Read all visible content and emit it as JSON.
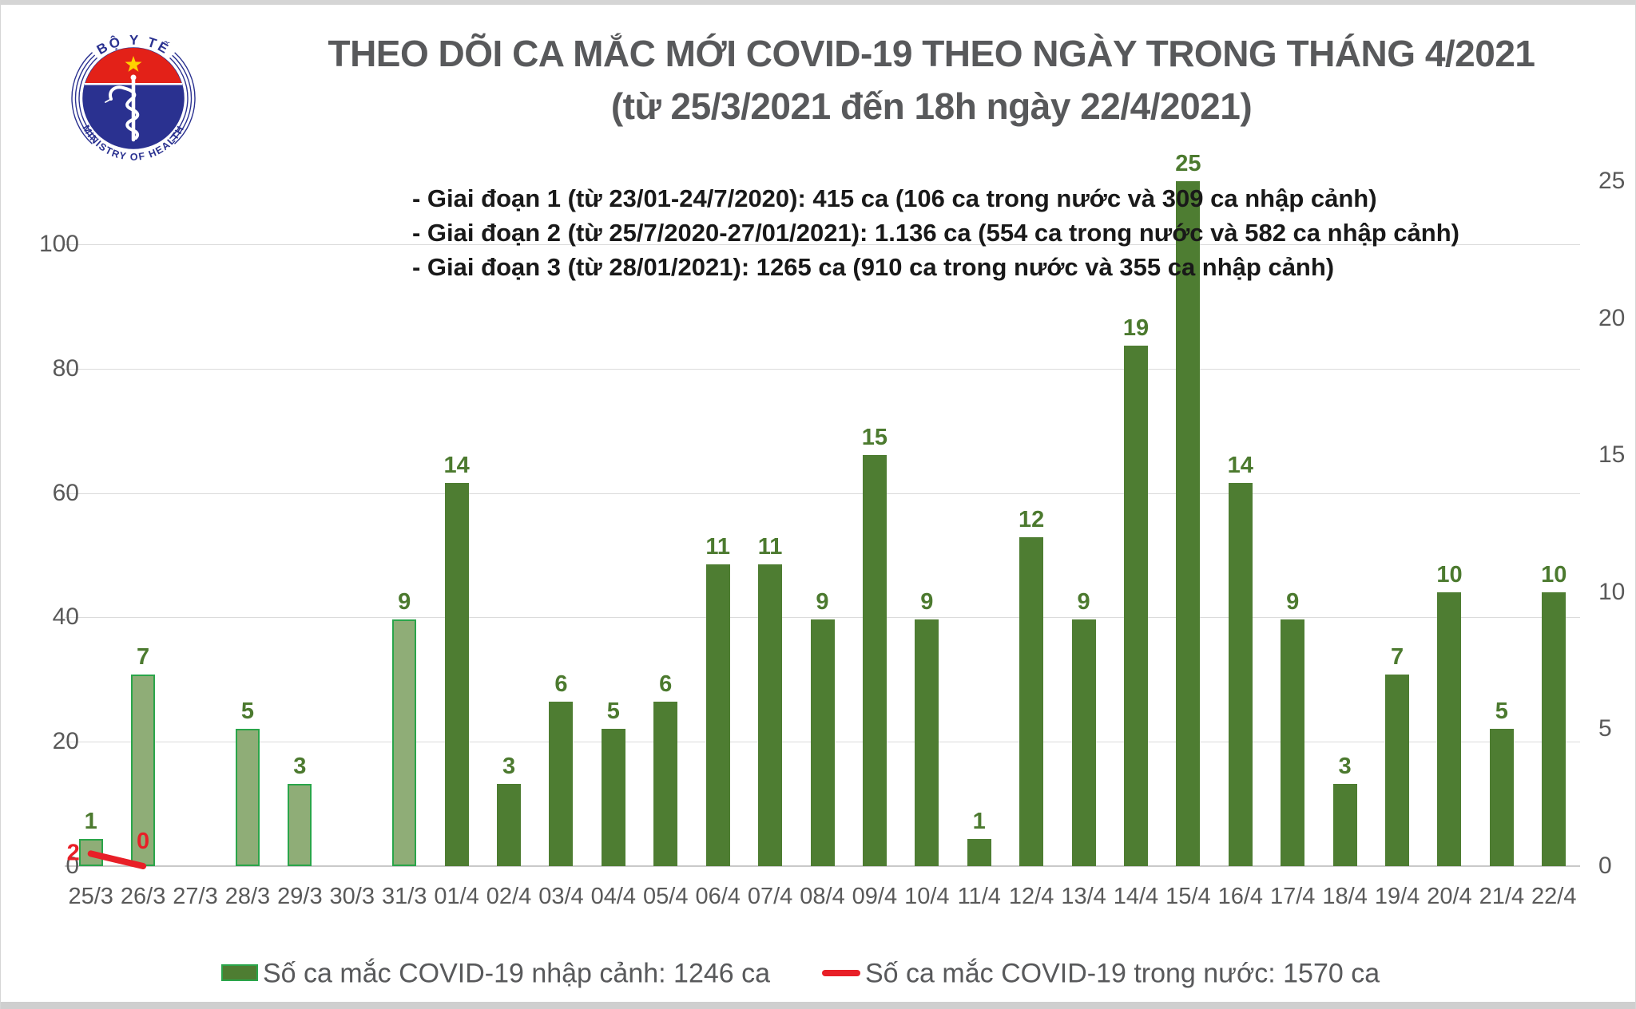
{
  "slide": {
    "title_line1": "THEO DÕI CA MẮC MỚI COVID-19 THEO NGÀY TRONG THÁNG 4/2021",
    "title_line2": "(từ 25/3/2021 đến 18h ngày 22/4/2021)"
  },
  "logo": {
    "top_text": "BỘ Y TẾ",
    "bottom_text": "MINISTRY OF HEALTH"
  },
  "annotations": [
    "- Giai đoạn 1 (từ 23/01-24/7/2020): 415 ca (106 ca trong nước và 309 ca nhập cảnh)",
    "- Giai đoạn 2 (từ 25/7/2020-27/01/2021): 1.136 ca (554 ca trong nước và 582 ca nhập cảnh)",
    "- Giai đoạn 3 (từ 28/01/2021): 1265 ca (910 ca trong nước và 355 ca nhập cảnh)"
  ],
  "legend": {
    "bar_label": "Số ca mắc COVID-19 nhập cảnh: 1246 ca",
    "line_label": "Số ca mắc COVID-19 trong nước: 1570 ca"
  },
  "colors": {
    "bar_april": "#4e7d32",
    "bar_march_fill": "#8fad77",
    "bar_march_border": "#2aa54a",
    "line_red": "#e81f27",
    "value_label_green": "#4c7a2f",
    "axis_gray": "#595959",
    "gridline": "#dbdbdb"
  },
  "chart_data": {
    "type": "bar",
    "title": "THEO DÕI CA MẮC MỚI COVID-19 THEO NGÀY TRONG THÁNG 4/2021 (từ 25/3/2021 đến 18h ngày 22/4/2021)",
    "categories": [
      "25/3",
      "26/3",
      "27/3",
      "28/3",
      "29/3",
      "30/3",
      "31/3",
      "01/4",
      "02/4",
      "03/4",
      "04/4",
      "05/4",
      "06/4",
      "07/4",
      "08/4",
      "09/4",
      "10/4",
      "11/4",
      "12/4",
      "13/4",
      "14/4",
      "15/4",
      "16/4",
      "17/4",
      "18/4",
      "19/4",
      "20/4",
      "21/4",
      "22/4"
    ],
    "series": [
      {
        "name": "Số ca mắc COVID-19 nhập cảnh: 1246 ca",
        "type": "bar",
        "axis": "right",
        "values": [
          1,
          7,
          null,
          5,
          3,
          null,
          9,
          14,
          3,
          6,
          5,
          6,
          11,
          11,
          9,
          15,
          9,
          1,
          12,
          9,
          19,
          25,
          14,
          9,
          3,
          7,
          10,
          5,
          10
        ]
      },
      {
        "name": "Số ca mắc COVID-19 trong nước: 1570 ca",
        "type": "line",
        "axis": "left",
        "values": [
          2,
          0,
          null,
          null,
          null,
          null,
          null,
          null,
          null,
          null,
          null,
          null,
          null,
          null,
          null,
          null,
          null,
          null,
          null,
          null,
          null,
          null,
          null,
          null,
          null,
          null,
          null,
          null,
          null
        ]
      }
    ],
    "left_axis": {
      "ticks": [
        0,
        20,
        40,
        60,
        80,
        100
      ],
      "range": [
        0,
        100
      ]
    },
    "right_axis": {
      "ticks": [
        0,
        5,
        10,
        15,
        20,
        25
      ],
      "range": [
        0,
        25
      ]
    },
    "march_category_count": 7,
    "grid": true,
    "legend_position": "bottom"
  }
}
